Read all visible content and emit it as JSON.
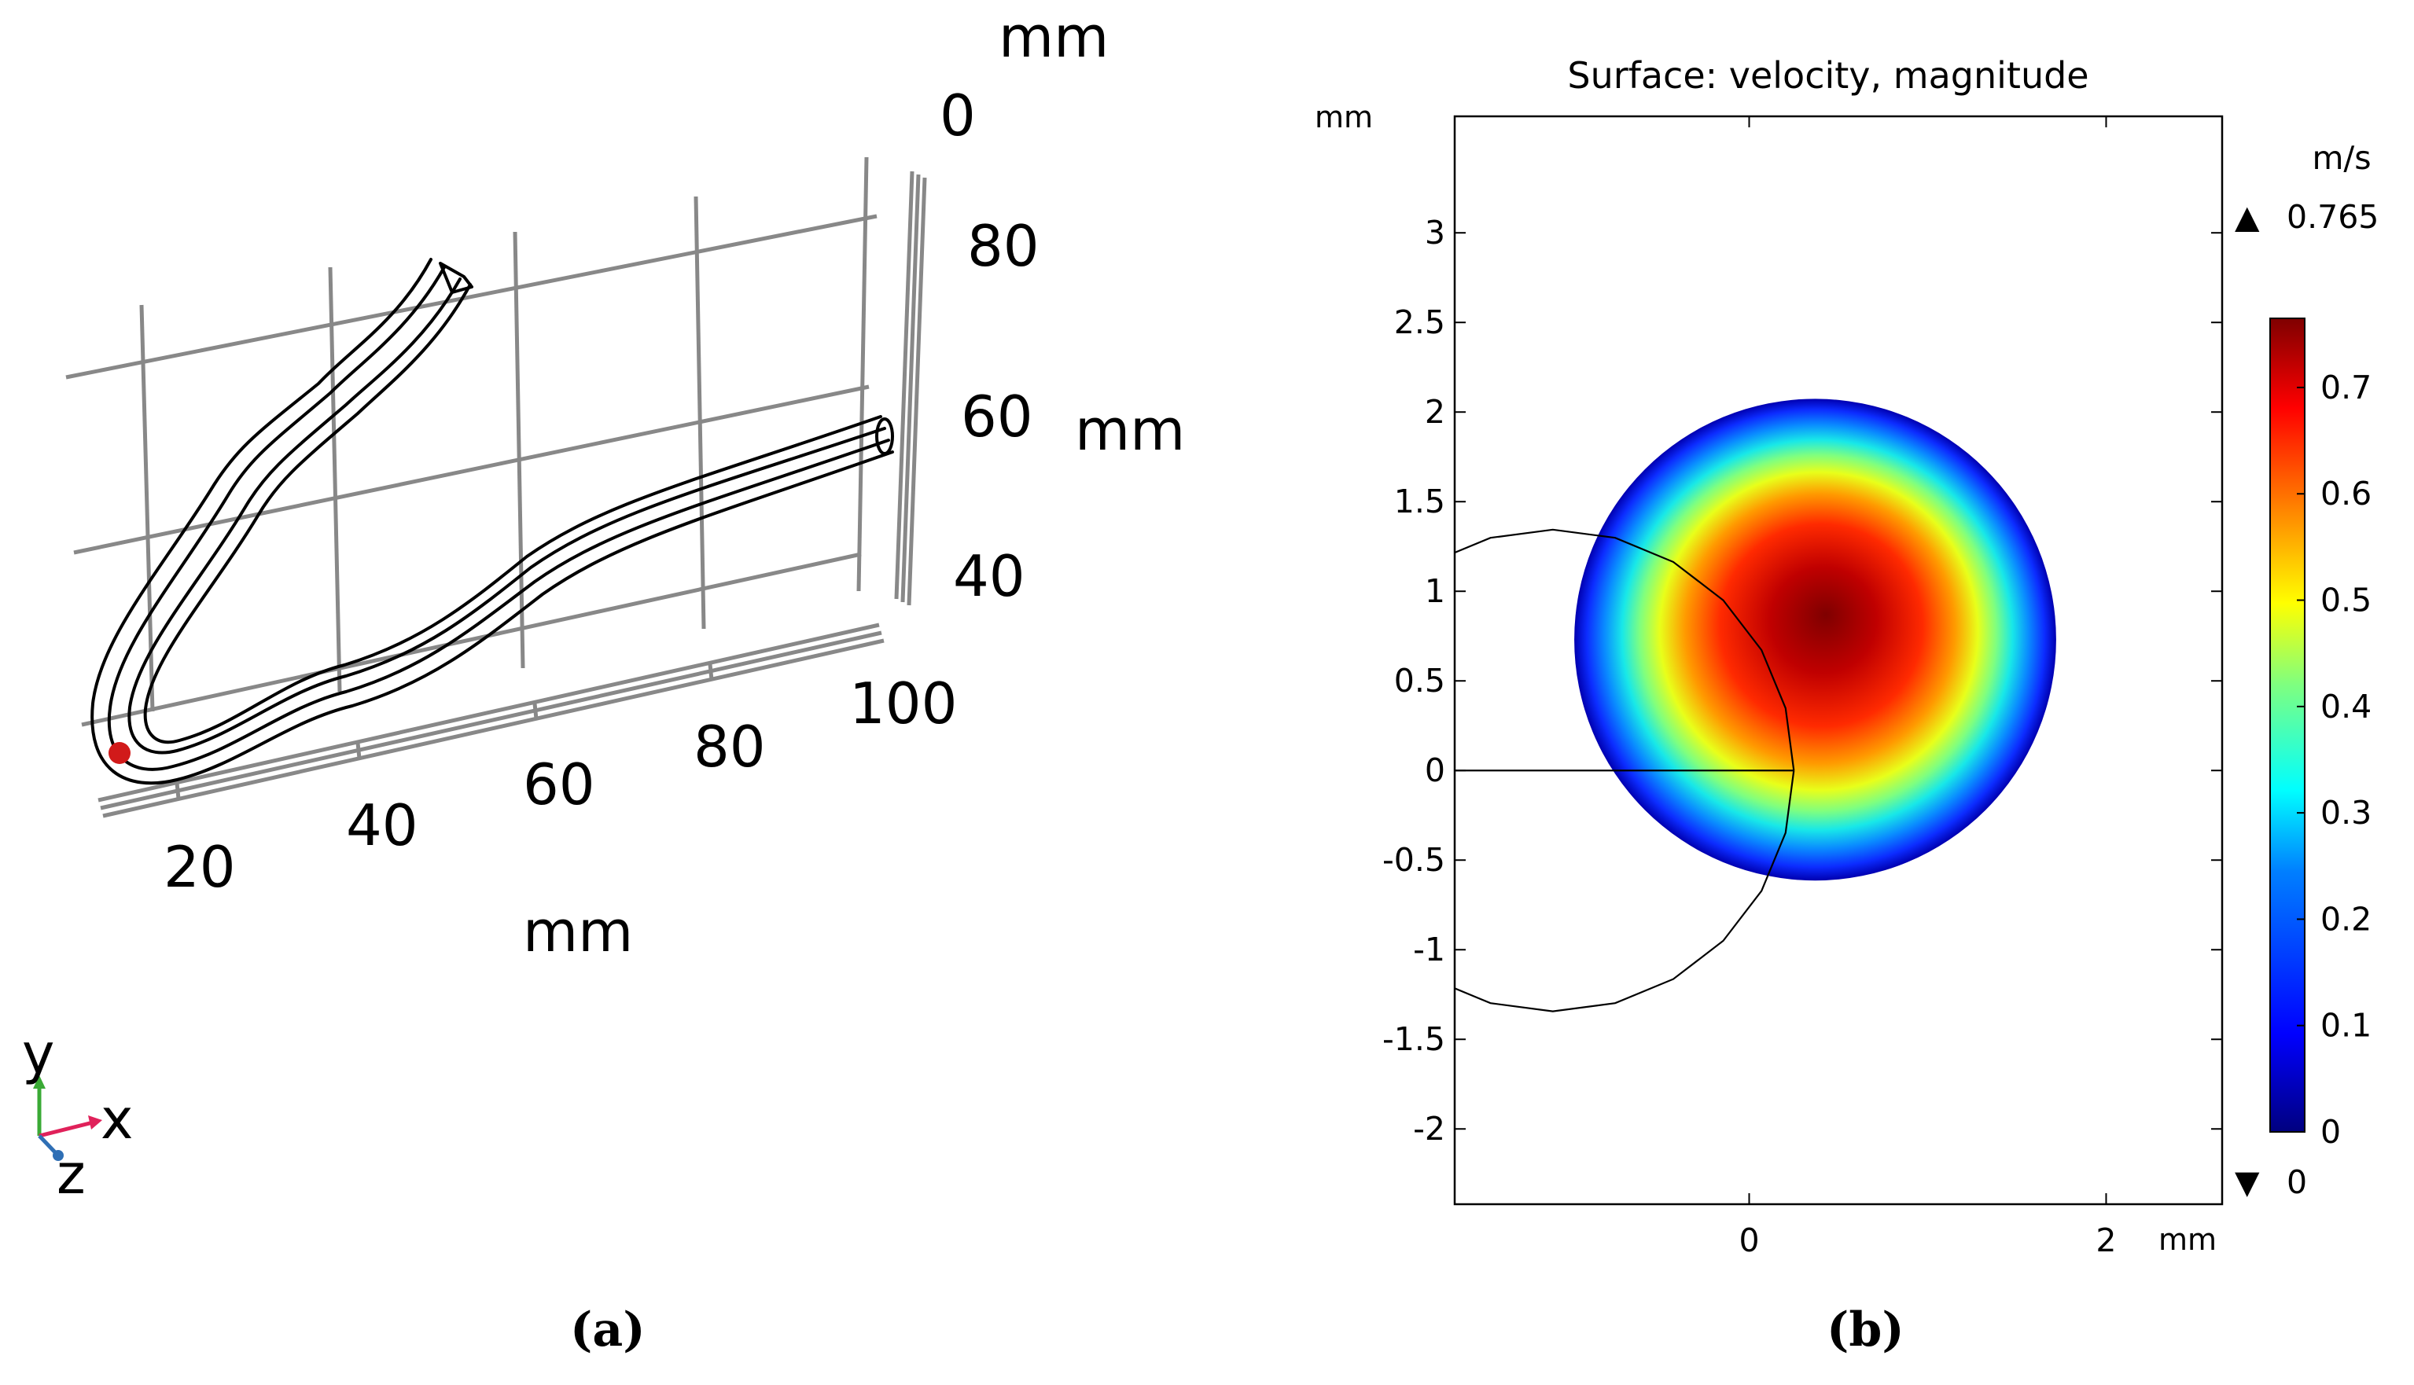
{
  "panel_a": {
    "caption": "(a)",
    "x_axis": {
      "label": "mm",
      "ticks": [
        "20",
        "40",
        "60",
        "80",
        "100"
      ]
    },
    "y_axis": {
      "label": "mm",
      "ticks": [
        "40",
        "60",
        "80",
        "0"
      ]
    },
    "z_axis": {
      "label": "mm"
    },
    "triad": {
      "x": "x",
      "y": "y",
      "z": "z"
    },
    "colors": {
      "grid": "#888888",
      "vessel": "#000000",
      "inlet_marker": "#d11a1a",
      "triad_x": "#e0215a",
      "triad_y": "#3aaa35",
      "triad_z": "#2f6fb5"
    }
  },
  "panel_b": {
    "caption": "(b)",
    "colorbar": {
      "unit": "m/s",
      "max_label": "0.765",
      "min_label": "0",
      "max_marker": "▲",
      "min_marker": "▼",
      "ticks": [
        "0",
        "0.1",
        "0.2",
        "0.3",
        "0.4",
        "0.5",
        "0.6",
        "0.7"
      ],
      "colormap": [
        "#00007f",
        "#0000ff",
        "#007fff",
        "#00ffff",
        "#7fff7f",
        "#ffff00",
        "#ff7f00",
        "#ff0000",
        "#7f0000"
      ]
    },
    "chart_data": {
      "type": "heatmap",
      "title": "Surface: velocity, magnitude",
      "xlabel": "mm",
      "ylabel": "mm",
      "xlim": [
        -1.65,
        2.65
      ],
      "ylim": [
        -2.42,
        3.65
      ],
      "x_ticks": [
        0,
        2
      ],
      "x_tick_labels": [
        "0",
        "2"
      ],
      "y_ticks": [
        3,
        2.5,
        2,
        1.5,
        1,
        0.5,
        0,
        -0.5,
        -1,
        -1.5,
        -2
      ],
      "y_tick_labels": [
        "3",
        "2.5",
        "2",
        "1.5",
        "1",
        "0.5",
        "0",
        "-0.5",
        "-1",
        "-1.5",
        "-2"
      ],
      "field": {
        "quantity": "velocity magnitude",
        "unit": "m/s",
        "min": 0,
        "max": 0.765,
        "domain": "circle",
        "center_mm": [
          0.37,
          0.73
        ],
        "radius_mm": 1.35,
        "peak_mm": [
          0.43,
          0.87
        ]
      },
      "outline_circle": {
        "center_mm": [
          -1.1,
          0.0
        ],
        "radius_mm": 1.35
      }
    }
  }
}
